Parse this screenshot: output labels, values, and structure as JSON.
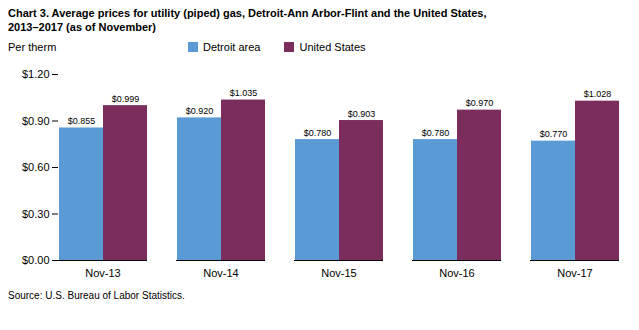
{
  "chart_data": {
    "type": "bar",
    "title": "Chart 3. Average prices for utility (piped) gas, Detroit-Ann Arbor-Flint and the United States,",
    "subtitle": "2013–2017  (as of November)",
    "ylabel": "Per therm",
    "source": "Source: U.S. Bureau of Labor Statistics.",
    "categories": [
      "Nov-13",
      "Nov-14",
      "Nov-15",
      "Nov-16",
      "Nov-17"
    ],
    "series": [
      {
        "name": "Detroit area",
        "color": "#5B9BD5",
        "values": [
          0.855,
          0.92,
          0.78,
          0.78,
          0.77
        ],
        "value_labels": [
          "$0.855",
          "$0.920",
          "$0.780",
          "$0.780",
          "$0.770"
        ]
      },
      {
        "name": "United States",
        "color": "#7B2D5E",
        "values": [
          0.999,
          1.035,
          0.903,
          0.97,
          1.028
        ],
        "value_labels": [
          "$0.999",
          "$1.035",
          "$0.903",
          "$0.970",
          "$1.028"
        ]
      }
    ],
    "ylim": [
      0.0,
      1.2
    ],
    "yticks": [
      {
        "value": 0.0,
        "label": "$0.00"
      },
      {
        "value": 0.3,
        "label": "$0.30"
      },
      {
        "value": 0.6,
        "label": "$0.60"
      },
      {
        "value": 0.9,
        "label": "$0.90"
      },
      {
        "value": 1.2,
        "label": "$1.20"
      }
    ],
    "grid": false,
    "legend": "top",
    "data_labels": true
  }
}
